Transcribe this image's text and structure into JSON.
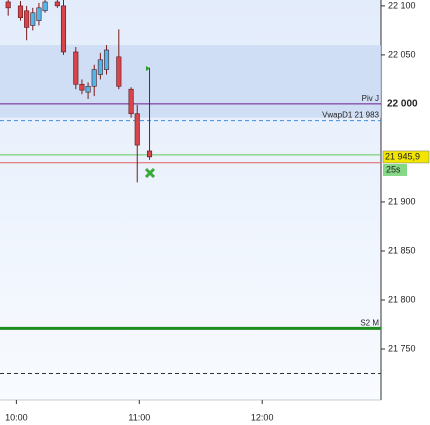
{
  "chart_data": {
    "type": "candlestick",
    "x": [
      "09:56",
      "10:02",
      "10:05",
      "10:08",
      "10:11",
      "10:14",
      "10:20",
      "10:23",
      "10:29",
      "10:32",
      "10:35",
      "10:38",
      "10:41",
      "10:44",
      "10:50",
      "10:56",
      "10:59",
      "11:05"
    ],
    "open": [
      22104,
      22100,
      22095,
      22080,
      22085,
      22095,
      22104,
      22100,
      22053,
      22020,
      22012,
      22018,
      22030,
      22035,
      22048,
      22015,
      21990,
      21952
    ],
    "high": [
      22106,
      22105,
      22100,
      22098,
      22103,
      22106,
      22106,
      22106,
      22058,
      22025,
      22022,
      22040,
      22052,
      22060,
      22076,
      22017,
      21999,
      22037
    ],
    "low": [
      22090,
      22085,
      22065,
      22075,
      22080,
      22093,
      22098,
      22050,
      22015,
      22010,
      22005,
      22008,
      22025,
      22030,
      22015,
      21986,
      21920,
      21943
    ],
    "close": [
      22098,
      22088,
      22078,
      22093,
      22098,
      22104,
      22100,
      22053,
      22020,
      22014,
      22018,
      22035,
      22045,
      22055,
      22018,
      21990,
      21958,
      21946
    ],
    "up_color": "#52b6ea",
    "down_color": "#d8444c",
    "xlim": [
      "09:52",
      "12:58"
    ],
    "xticks": [
      "10:00",
      "11:00",
      "12:00"
    ],
    "ylim": [
      21698,
      22106
    ],
    "yticks": [
      {
        "value": 22100,
        "label": "22 100"
      },
      {
        "value": 22050,
        "label": "22 050"
      },
      {
        "value": 21900,
        "label": "21 900"
      },
      {
        "value": 21850,
        "label": "21 850"
      },
      {
        "value": 21800,
        "label": "21 800"
      },
      {
        "value": 21750,
        "label": "21 750"
      }
    ],
    "band": [
      21986,
      22060
    ],
    "levels": [
      {
        "name": "Piv J",
        "value": 22000,
        "color": "#6a1b8a",
        "axis_label": "22 000"
      },
      {
        "name": "VwapD1 21 983",
        "value": 21983,
        "color": "#3b8fe0",
        "dash": true
      },
      {
        "value": 21948,
        "color": "#5cc85c"
      },
      {
        "value": 21940,
        "color": "#e06060"
      },
      {
        "name": "S2 M",
        "value": 21771,
        "color": "#1e8c1e",
        "width": 3
      },
      {
        "value": 21725,
        "color": "#333333",
        "dash": true
      }
    ],
    "last": {
      "value": 21945.9,
      "label": "21 945,9",
      "timer": "25s"
    }
  }
}
